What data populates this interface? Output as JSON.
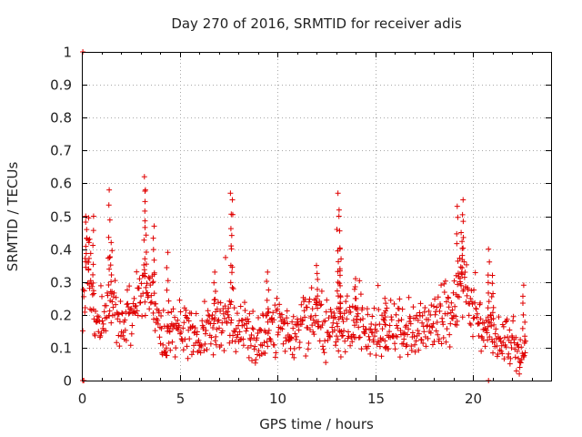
{
  "chart_data": {
    "type": "scatter",
    "title": "Day 270 of 2016, SRMTID for receiver adis",
    "xlabel": "GPS time / hours",
    "ylabel": "SRMTID / TECUs",
    "xlim": [
      0,
      24
    ],
    "ylim": [
      0,
      1
    ],
    "x_ticks": [
      0,
      5,
      10,
      15,
      20
    ],
    "y_ticks": [
      0,
      0.1,
      0.2,
      0.3,
      0.4,
      0.5,
      0.6,
      0.7,
      0.8,
      0.9,
      1
    ],
    "x_tick_labels": [
      "0",
      "5",
      "10",
      "15",
      "20"
    ],
    "y_tick_labels": [
      "0",
      "0.1",
      "0.2",
      "0.3",
      "0.4",
      "0.5",
      "0.6",
      "0.7",
      "0.8",
      "0.9",
      "1"
    ],
    "grid": true,
    "marker": "+",
    "series_color": "#e00000",
    "series": [
      {
        "name": "SRMTID",
        "note": "approximate density profile of samples read from the figure",
        "x_start": 0.05,
        "x_end": 22.7,
        "x_step": 0.025,
        "baseline": [
          [
            0,
            0.22
          ],
          [
            0.3,
            0.38
          ],
          [
            0.6,
            0.18
          ],
          [
            1.0,
            0.16
          ],
          [
            1.5,
            0.25
          ],
          [
            2.0,
            0.15
          ],
          [
            2.5,
            0.18
          ],
          [
            3.0,
            0.27
          ],
          [
            3.5,
            0.26
          ],
          [
            4.0,
            0.17
          ],
          [
            4.3,
            0.1
          ],
          [
            4.6,
            0.17
          ],
          [
            5.0,
            0.16
          ],
          [
            6.0,
            0.14
          ],
          [
            7.0,
            0.16
          ],
          [
            7.5,
            0.2
          ],
          [
            8.0,
            0.15
          ],
          [
            9.0,
            0.13
          ],
          [
            10.0,
            0.16
          ],
          [
            11.0,
            0.15
          ],
          [
            12.0,
            0.2
          ],
          [
            12.5,
            0.17
          ],
          [
            13.0,
            0.16
          ],
          [
            14.0,
            0.17
          ],
          [
            15.0,
            0.14
          ],
          [
            16.0,
            0.15
          ],
          [
            17.0,
            0.15
          ],
          [
            18.0,
            0.17
          ],
          [
            19.0,
            0.21
          ],
          [
            19.5,
            0.3
          ],
          [
            20.0,
            0.2
          ],
          [
            20.5,
            0.17
          ],
          [
            21.0,
            0.15
          ],
          [
            21.5,
            0.13
          ],
          [
            22.0,
            0.11
          ],
          [
            22.7,
            0.08
          ]
        ],
        "spikes": [
          {
            "x": 0.2,
            "y": 0.5
          },
          {
            "x": 0.4,
            "y": 0.43
          },
          {
            "x": 0.6,
            "y": 0.5
          },
          {
            "x": 1.4,
            "y": 0.58
          },
          {
            "x": 1.5,
            "y": 0.42
          },
          {
            "x": 3.2,
            "y": 0.62
          },
          {
            "x": 3.25,
            "y": 0.58
          },
          {
            "x": 3.7,
            "y": 0.47
          },
          {
            "x": 4.4,
            "y": 0.39
          },
          {
            "x": 6.8,
            "y": 0.33
          },
          {
            "x": 7.6,
            "y": 0.57
          },
          {
            "x": 7.7,
            "y": 0.55
          },
          {
            "x": 9.5,
            "y": 0.33
          },
          {
            "x": 12.0,
            "y": 0.35
          },
          {
            "x": 13.1,
            "y": 0.57
          },
          {
            "x": 13.15,
            "y": 0.5
          },
          {
            "x": 13.2,
            "y": 0.4
          },
          {
            "x": 13.2,
            "y": 0.34
          },
          {
            "x": 14.0,
            "y": 0.31
          },
          {
            "x": 15.5,
            "y": 0.25
          },
          {
            "x": 19.2,
            "y": 0.53
          },
          {
            "x": 19.5,
            "y": 0.55
          },
          {
            "x": 19.4,
            "y": 0.45
          },
          {
            "x": 20.8,
            "y": 0.4
          },
          {
            "x": 21.0,
            "y": 0.32
          },
          {
            "x": 22.6,
            "y": 0.29
          }
        ],
        "outliers": [
          {
            "x": 0.05,
            "y": 1.0
          },
          {
            "x": 0.05,
            "y": 0.0
          },
          {
            "x": 0.1,
            "y": 0.0
          },
          {
            "x": 20.8,
            "y": 0.0
          },
          {
            "x": 22.4,
            "y": 0.04
          }
        ]
      }
    ]
  }
}
